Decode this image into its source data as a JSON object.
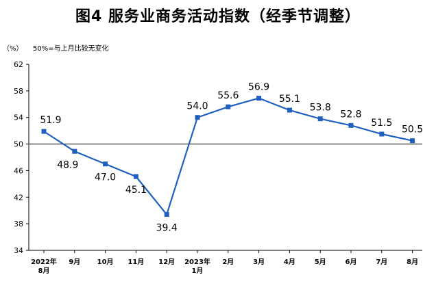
{
  "chart_data": {
    "type": "line",
    "title": "图4  服务业商务活动指数（经季节调整）",
    "unit_label": "（%）",
    "note": "50%=与上月比较无变化",
    "x": [
      "2022年8月",
      "9月",
      "10月",
      "11月",
      "12月",
      "2023年1月",
      "2月",
      "3月",
      "4月",
      "5月",
      "6月",
      "7月",
      "8月"
    ],
    "x_tick_labels": [
      [
        "2022年",
        "8月"
      ],
      [
        "9月"
      ],
      [
        "10月"
      ],
      [
        "11月"
      ],
      [
        "12月"
      ],
      [
        "2023年",
        "1月"
      ],
      [
        "2月"
      ],
      [
        "3月"
      ],
      [
        "4月"
      ],
      [
        "5月"
      ],
      [
        "6月"
      ],
      [
        "7月"
      ],
      [
        "8月"
      ]
    ],
    "series": [
      {
        "values": [
          51.9,
          48.9,
          47.0,
          45.1,
          39.4,
          54.0,
          55.6,
          56.9,
          55.1,
          53.8,
          52.8,
          51.5,
          50.5
        ]
      }
    ],
    "data_labels": [
      "51.9",
      "48.9",
      "47.0",
      "45.1",
      "39.4",
      "54.0",
      "55.6",
      "56.9",
      "55.1",
      "53.8",
      "52.8",
      "51.5",
      "50.5"
    ],
    "label_position": [
      "above",
      "below",
      "below",
      "below",
      "below",
      "above",
      "above",
      "above",
      "above",
      "above",
      "above",
      "above",
      "above"
    ],
    "ylim": [
      34,
      62
    ],
    "yticks": [
      "34",
      "38",
      "42",
      "46",
      "50",
      "54",
      "58",
      "62"
    ],
    "reference_line": 50,
    "line_color": "#1f5fbf",
    "axis_color": "#000000",
    "grid": false
  }
}
